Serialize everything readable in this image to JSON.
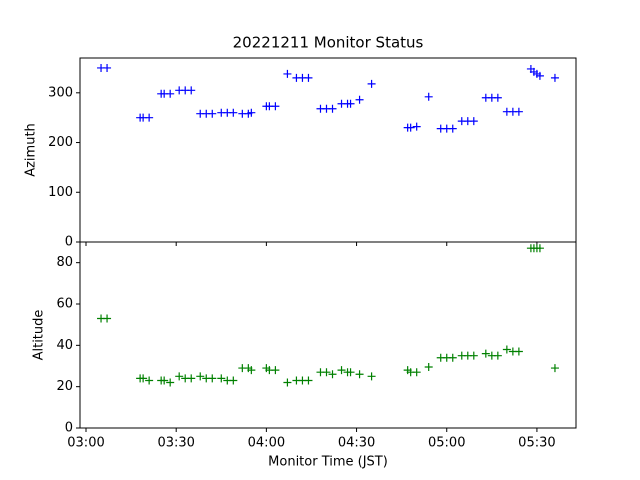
{
  "chart_data": [
    {
      "type": "scatter",
      "title": "20221211 Monitor Status",
      "ylabel": "Azimuth",
      "color": "#0000ff",
      "marker": "+",
      "x": [
        "03:05",
        "03:07",
        "03:18",
        "03:19",
        "03:21",
        "03:25",
        "03:26",
        "03:28",
        "03:31",
        "03:33",
        "03:35",
        "03:38",
        "03:40",
        "03:42",
        "03:45",
        "03:47",
        "03:49",
        "03:52",
        "03:54",
        "03:55",
        "04:00",
        "04:01",
        "04:03",
        "04:07",
        "04:10",
        "04:12",
        "04:14",
        "04:18",
        "04:20",
        "04:22",
        "04:25",
        "04:27",
        "04:28",
        "04:31",
        "04:35",
        "04:47",
        "04:48",
        "04:50",
        "04:54",
        "04:58",
        "05:00",
        "05:02",
        "05:05",
        "05:07",
        "05:09",
        "05:13",
        "05:15",
        "05:17",
        "05:20",
        "05:22",
        "05:24",
        "05:28",
        "05:29",
        "05:30",
        "05:31",
        "05:36"
      ],
      "values": [
        350,
        350,
        250,
        250,
        250,
        298,
        298,
        298,
        305,
        305,
        305,
        258,
        258,
        258,
        260,
        260,
        260,
        258,
        258,
        260,
        273,
        273,
        273,
        338,
        330,
        330,
        330,
        268,
        268,
        268,
        278,
        278,
        278,
        286,
        318,
        230,
        230,
        232,
        292,
        228,
        228,
        228,
        243,
        243,
        243,
        290,
        290,
        290,
        262,
        262,
        262,
        348,
        342,
        338,
        334,
        330
      ],
      "xlim": [
        "02:58",
        "05:43"
      ],
      "xticks": [
        "03:00",
        "03:30",
        "04:00",
        "04:30",
        "05:00",
        "05:30"
      ],
      "ylim": [
        0,
        370
      ],
      "yticks": [
        0,
        100,
        200,
        300
      ]
    },
    {
      "type": "scatter",
      "xlabel": "Monitor Time (JST)",
      "ylabel": "Altitude",
      "color": "#008000",
      "marker": "+",
      "x": [
        "03:05",
        "03:07",
        "03:18",
        "03:19",
        "03:21",
        "03:25",
        "03:26",
        "03:28",
        "03:31",
        "03:33",
        "03:35",
        "03:38",
        "03:40",
        "03:42",
        "03:45",
        "03:47",
        "03:49",
        "03:52",
        "03:54",
        "03:55",
        "04:00",
        "04:01",
        "04:03",
        "04:07",
        "04:10",
        "04:12",
        "04:14",
        "04:18",
        "04:20",
        "04:22",
        "04:25",
        "04:27",
        "04:28",
        "04:31",
        "04:35",
        "04:47",
        "04:48",
        "04:50",
        "04:54",
        "04:58",
        "05:00",
        "05:02",
        "05:05",
        "05:07",
        "05:09",
        "05:13",
        "05:15",
        "05:17",
        "05:20",
        "05:22",
        "05:24",
        "05:28",
        "05:29",
        "05:30",
        "05:31",
        "05:36"
      ],
      "values": [
        53,
        53,
        24,
        24,
        23,
        23,
        23,
        22,
        25,
        24,
        24,
        25,
        24,
        24,
        24,
        23,
        23,
        29,
        29,
        28,
        29,
        28,
        28,
        22,
        23,
        23,
        23,
        27,
        27,
        26,
        28,
        27,
        27,
        26,
        25,
        28,
        27,
        27,
        29.5,
        34,
        34,
        34,
        35,
        35,
        35,
        36,
        35,
        35,
        38,
        37,
        37,
        87,
        87,
        87,
        87,
        29
      ],
      "xlim": [
        "02:58",
        "05:43"
      ],
      "xticks": [
        "03:00",
        "03:30",
        "04:00",
        "04:30",
        "05:00",
        "05:30"
      ],
      "ylim": [
        0,
        90
      ],
      "yticks": [
        0,
        20,
        40,
        60,
        80
      ]
    }
  ]
}
